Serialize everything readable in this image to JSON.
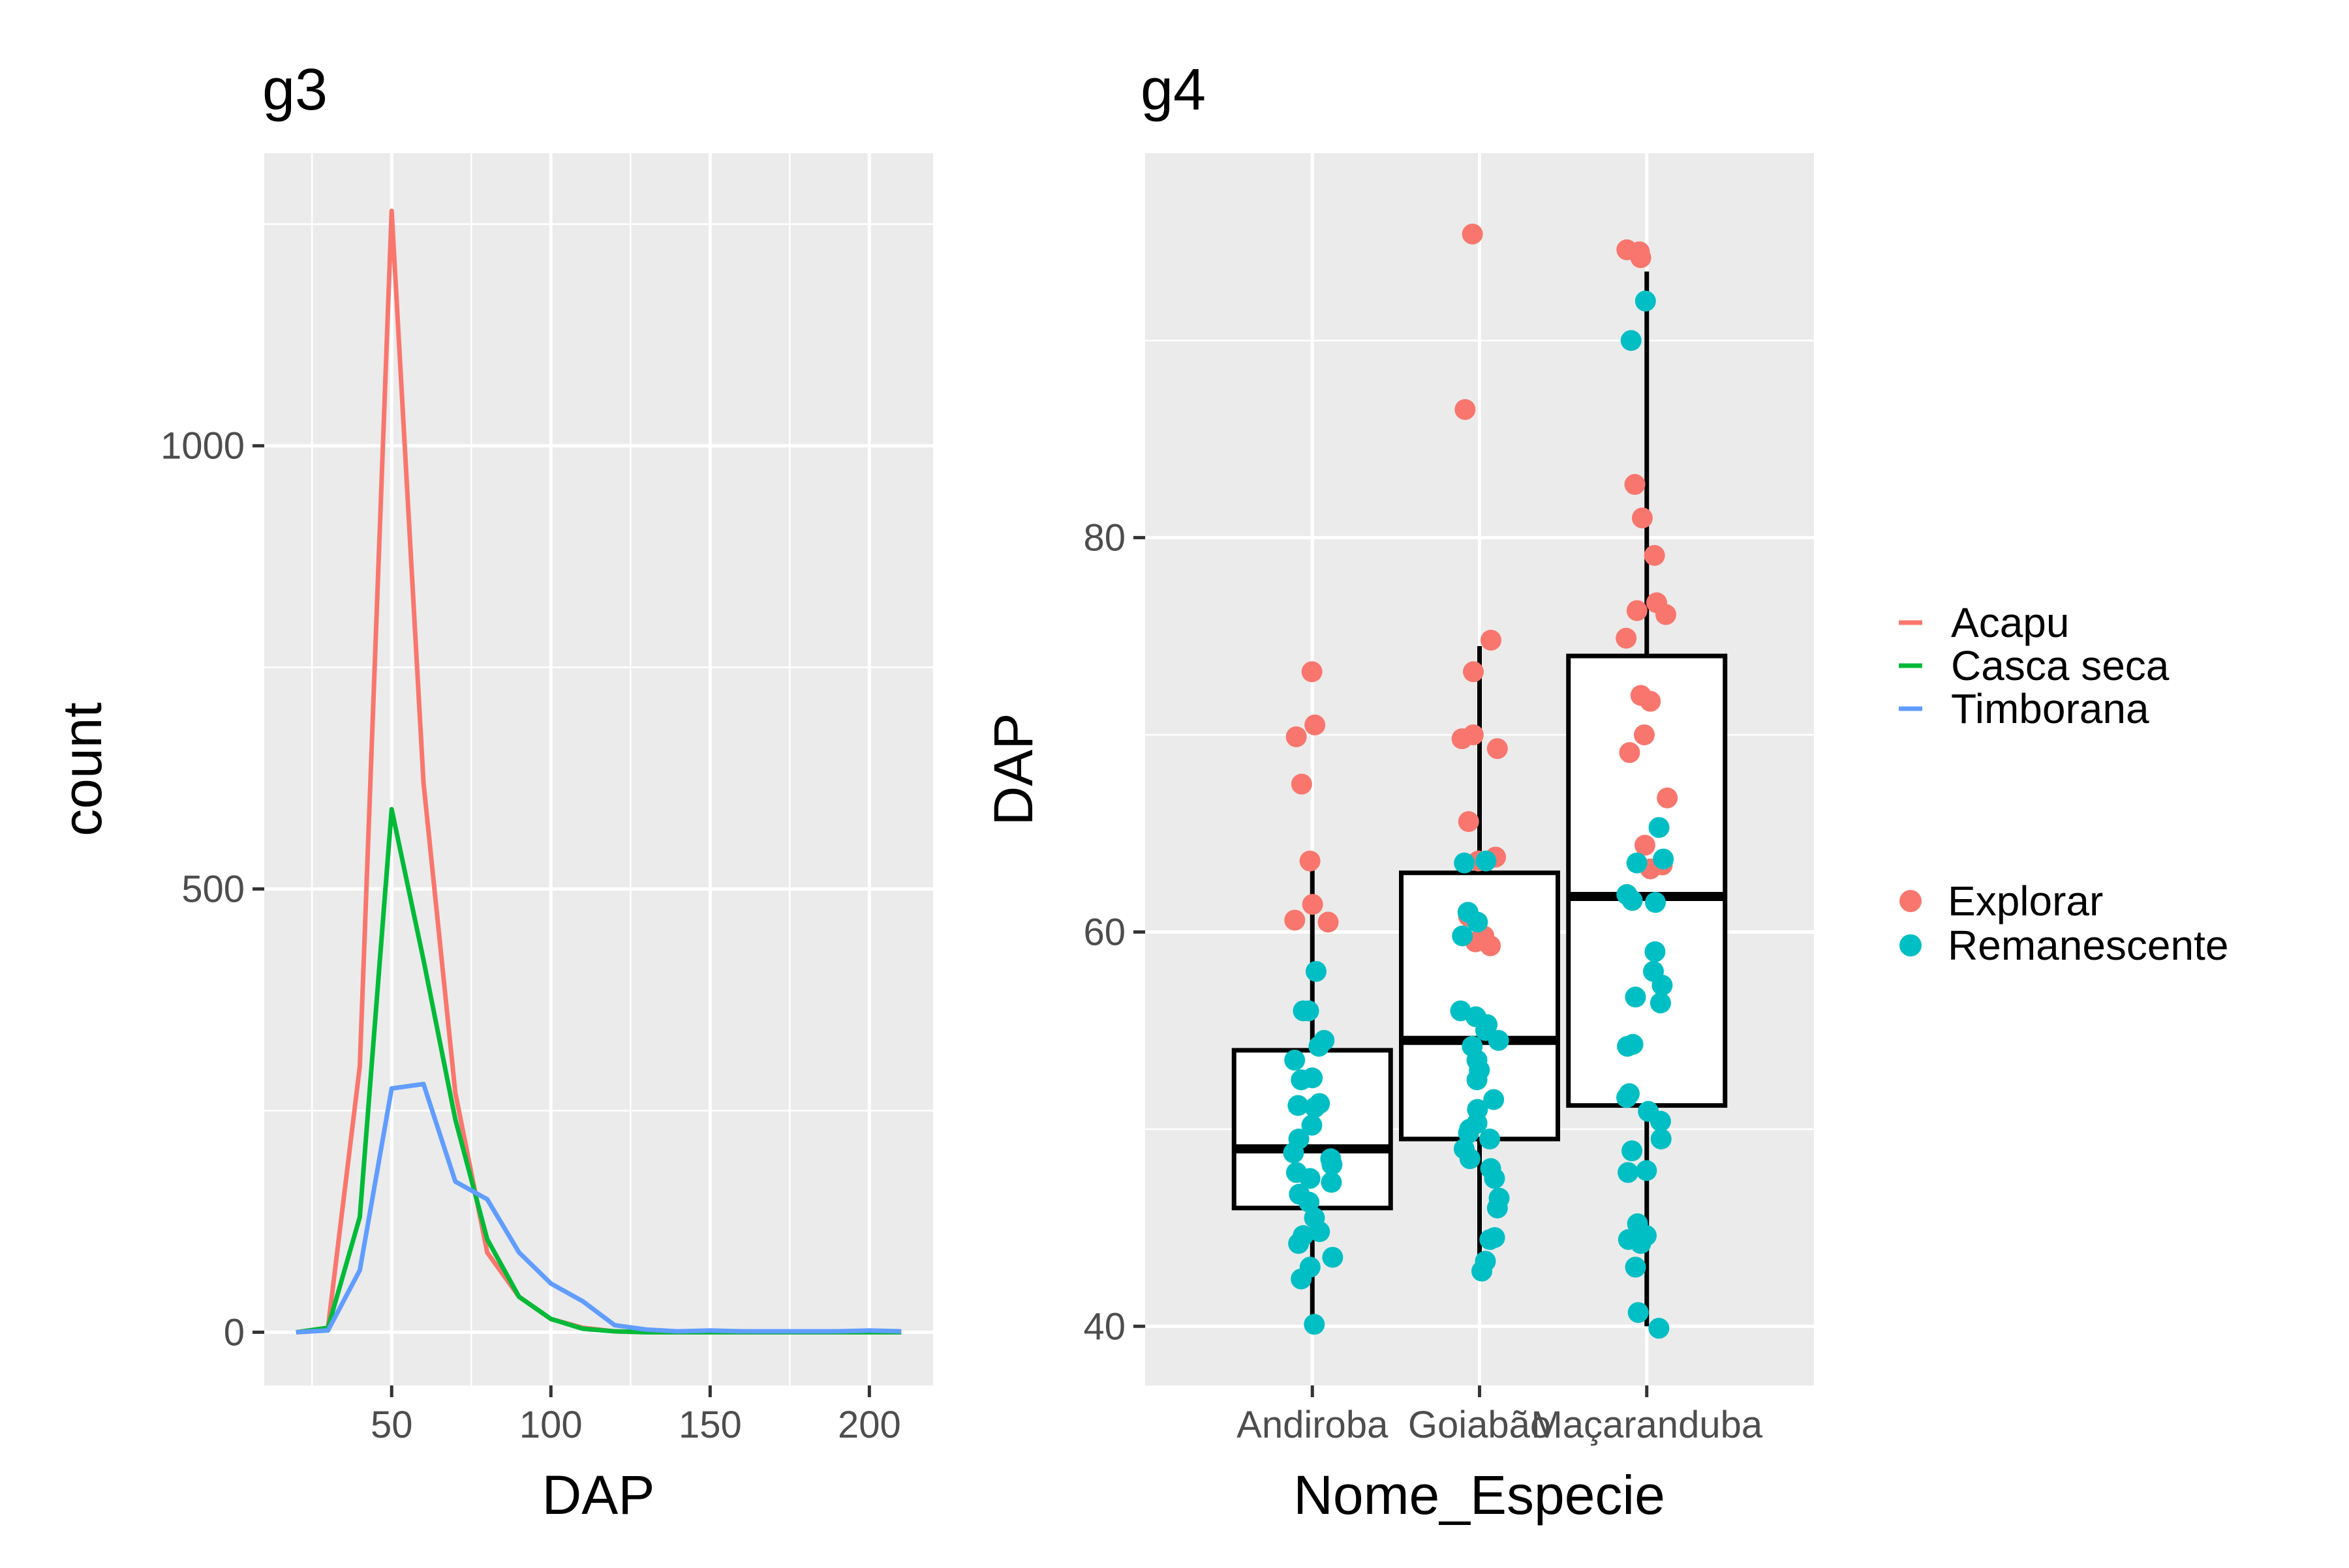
{
  "colors": {
    "Acapu": "#F8766D",
    "Casca seca": "#00BA38",
    "Timborana": "#619CFF",
    "Explorar": "#F8766D",
    "Remanescente": "#00BFC4",
    "panel": "#EBEBEB"
  },
  "chart_data": [
    {
      "type": "line",
      "title": "g3",
      "xlabel": "DAP",
      "ylabel": "count",
      "xlim": [
        10,
        220
      ],
      "ylim": [
        -60,
        1330
      ],
      "xticks": [
        50,
        100,
        150,
        200
      ],
      "yticks": [
        0,
        500,
        1000
      ],
      "x": [
        20,
        30,
        40,
        50,
        60,
        70,
        80,
        90,
        100,
        110,
        120,
        130,
        140,
        150,
        160,
        170,
        180,
        190,
        200,
        210
      ],
      "series": [
        {
          "name": "Acapu",
          "values": [
            0,
            5,
            300,
            1265,
            620,
            270,
            90,
            40,
            15,
            5,
            1,
            0,
            0,
            0,
            0,
            0,
            0,
            0,
            0,
            0
          ]
        },
        {
          "name": "Casca seca",
          "values": [
            0,
            5,
            130,
            590,
            420,
            240,
            105,
            40,
            15,
            4,
            1,
            0,
            0,
            0,
            0,
            0,
            0,
            0,
            0,
            0
          ]
        },
        {
          "name": "Timborana",
          "values": [
            0,
            2,
            70,
            275,
            280,
            170,
            150,
            90,
            55,
            35,
            8,
            3,
            1,
            2,
            1,
            1,
            1,
            1,
            2,
            1
          ]
        }
      ],
      "grid": true,
      "legend": "right"
    },
    {
      "type": "box",
      "title": "g4",
      "xlabel": "Nome_Especie",
      "ylabel": "DAP",
      "categories": [
        "Andiroba",
        "Goiabão",
        "Maçaranduba"
      ],
      "ylim": [
        37,
        99.5
      ],
      "yticks": [
        40,
        60,
        80
      ],
      "boxes": [
        {
          "category": "Andiroba",
          "min": 40,
          "q1": 46,
          "median": 49,
          "q3": 54,
          "max": 63.5
        },
        {
          "category": "Goiabão",
          "min": 43,
          "q1": 49.5,
          "median": 54.5,
          "q3": 63,
          "max": 74.5
        },
        {
          "category": "Maçaranduba",
          "min": 40,
          "q1": 51.2,
          "median": 61.8,
          "q3": 74,
          "max": 93.5
        }
      ],
      "points": [
        {
          "series": "Explorar",
          "category": "Andiroba",
          "values": [
            73.2,
            70.5,
            69.9,
            67.5,
            63.6,
            61.4,
            60.6,
            60.5
          ]
        },
        {
          "series": "Remanescente",
          "category": "Andiroba",
          "values": [
            58,
            56,
            56,
            54.5,
            54.2,
            53.5,
            52.6,
            52.5,
            51.3,
            51.2,
            51.1,
            50.2,
            49.5,
            48.8,
            48.5,
            48.2,
            47.8,
            47.5,
            47.3,
            46.7,
            46.3,
            45.5,
            44.8,
            44.6,
            44.2,
            43.5,
            43,
            42.4,
            40.1
          ]
        },
        {
          "series": "Explorar",
          "category": "Goiabão",
          "values": [
            95.4,
            86.5,
            74.8,
            73.2,
            70,
            69.8,
            69.3,
            65.6,
            63.8,
            63.6,
            60.8,
            59.8,
            59.5,
            59.3
          ]
        },
        {
          "series": "Remanescente",
          "category": "Goiabão",
          "values": [
            63.6,
            63.5,
            61,
            60.5,
            59.8,
            56,
            55.7,
            55.3,
            55,
            54.5,
            54.2,
            53.5,
            53,
            52.5,
            51.5,
            51,
            50.3,
            50,
            49.8,
            49.5,
            49,
            48.5,
            48,
            47.5,
            46.5,
            46,
            44.5,
            44.4,
            43.3,
            42.8
          ]
        },
        {
          "series": "Explorar",
          "category": "Maçaranduba",
          "values": [
            94.6,
            94.5,
            94.2,
            82.7,
            81,
            79.1,
            76.7,
            76.3,
            76.1,
            74.9,
            72,
            71.7,
            70,
            69.1,
            66.8,
            64.4,
            63.4,
            63.2
          ]
        },
        {
          "series": "Remanescente",
          "category": "Maçaranduba",
          "values": [
            92,
            90,
            65.3,
            63.7,
            63.5,
            61.9,
            61.6,
            61.5,
            59,
            58,
            57.3,
            56.7,
            56.4,
            54.3,
            54.2,
            51.8,
            51.6,
            50.9,
            50.4,
            49.5,
            48.9,
            47.9,
            47.8,
            45.2,
            44.6,
            44.4,
            44.2,
            43,
            40.7,
            39.9
          ]
        }
      ],
      "grid": true,
      "legend": "right"
    }
  ],
  "legends": {
    "lines": [
      "Acapu",
      "Casca seca",
      "Timborana"
    ],
    "points": [
      "Explorar",
      "Remanescente"
    ]
  }
}
